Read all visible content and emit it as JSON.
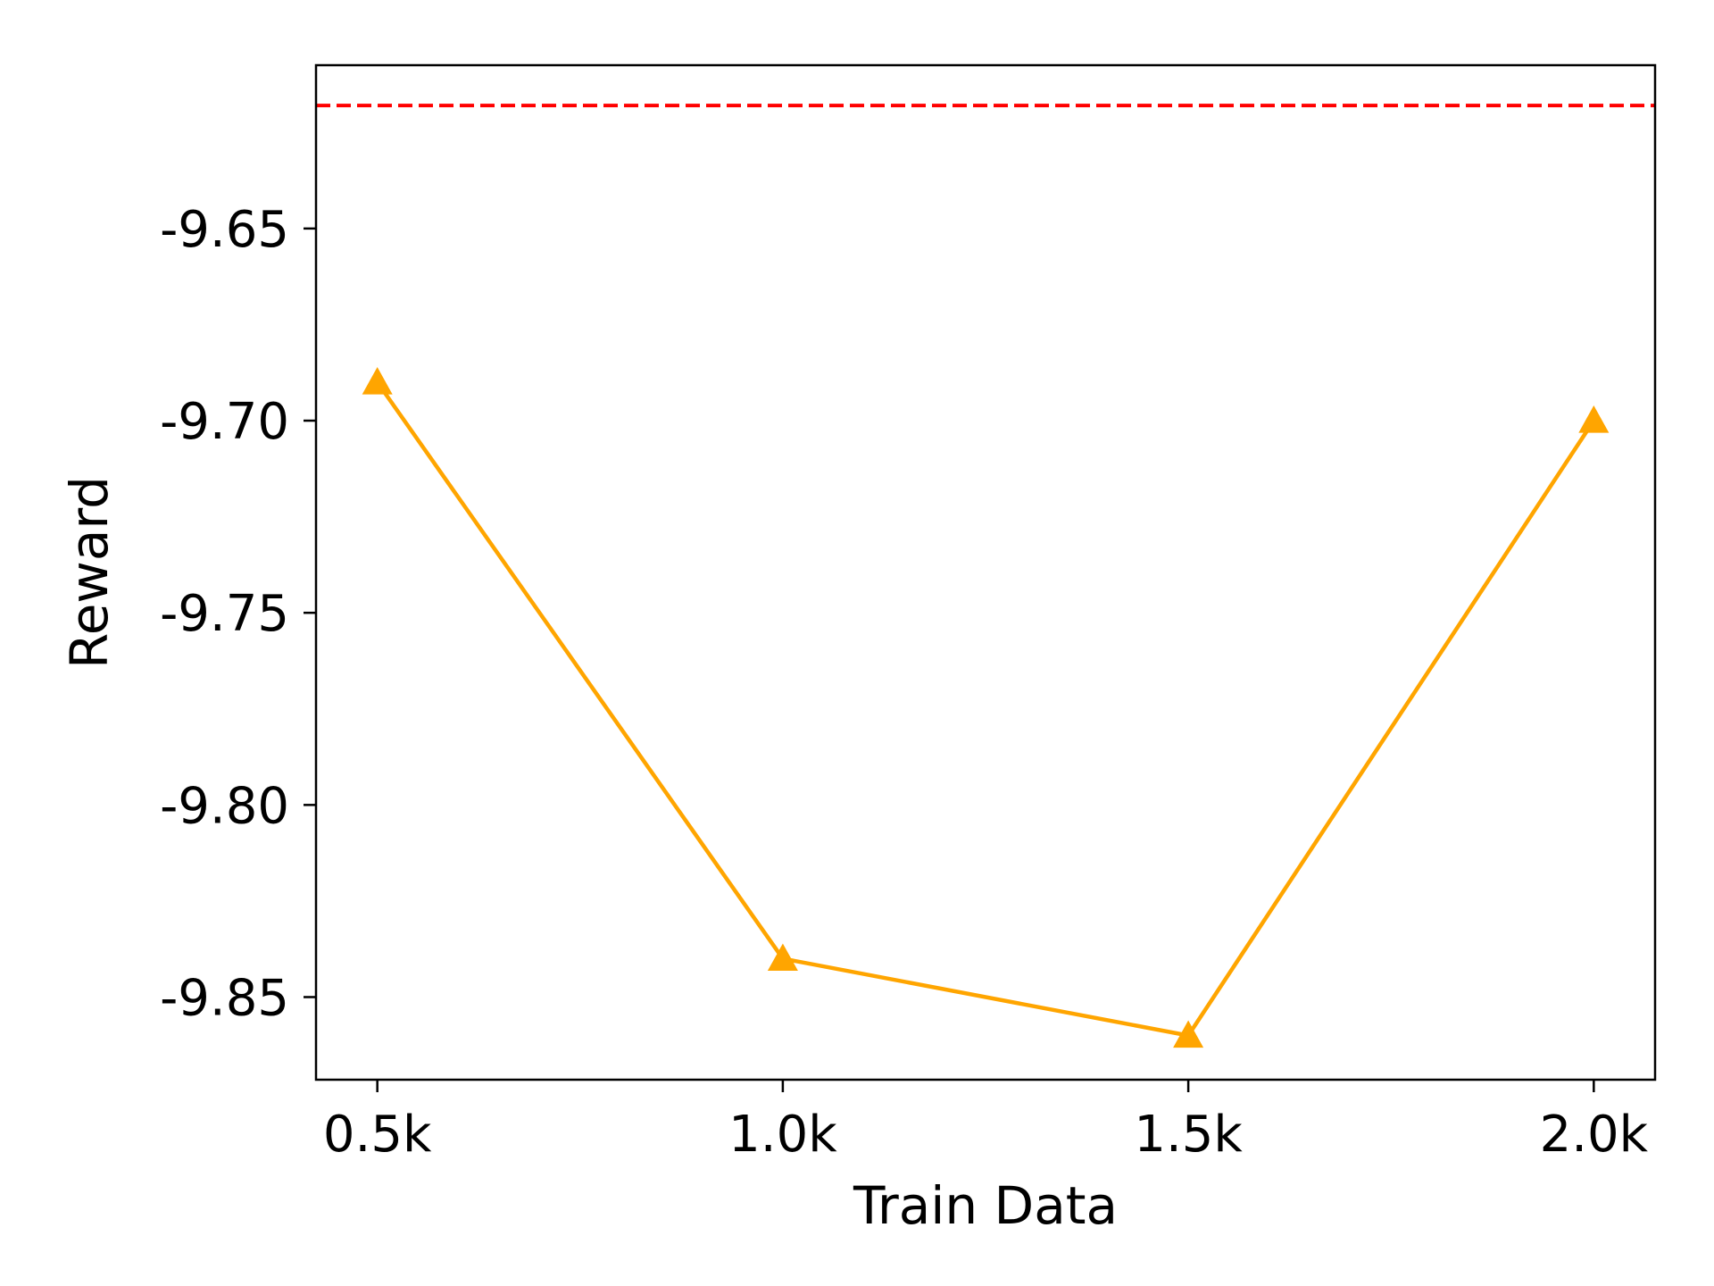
{
  "chart_data": {
    "type": "line",
    "title": "",
    "xlabel": "Train Data",
    "ylabel": "Reward",
    "categories": [
      "0.5k",
      "1.0k",
      "1.5k",
      "2.0k"
    ],
    "x": [
      0.5,
      1.0,
      1.5,
      2.0
    ],
    "series": [
      {
        "values": [
          -9.69,
          -9.84,
          -9.86,
          -9.7
        ],
        "color": "#FFA500",
        "marker": "triangle-up",
        "line_style": "solid"
      }
    ],
    "reference_lines": [
      {
        "y": -9.618,
        "color": "#FF0000",
        "line_style": "dashed"
      }
    ],
    "xlim": [
      0.4244,
      2.0756
    ],
    "ylim": [
      -9.8715,
      -9.6075
    ],
    "yticks": [
      -9.65,
      -9.7,
      -9.75,
      -9.8,
      -9.85
    ],
    "ytick_labels": [
      "-9.65",
      "-9.70",
      "-9.75",
      "-9.80",
      "-9.85"
    ],
    "grid": false,
    "legend": "none"
  }
}
